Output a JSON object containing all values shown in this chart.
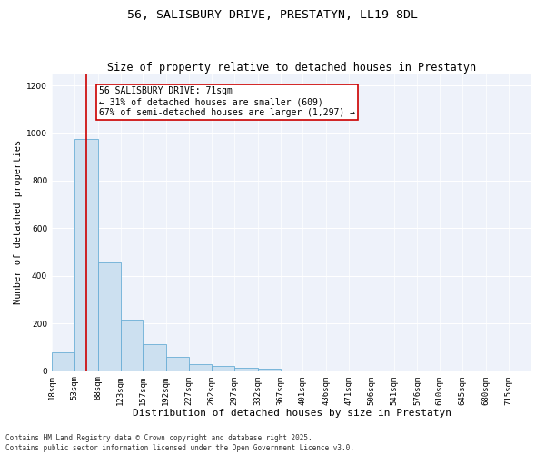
{
  "title": "56, SALISBURY DRIVE, PRESTATYN, LL19 8DL",
  "subtitle": "Size of property relative to detached houses in Prestatyn",
  "xlabel": "Distribution of detached houses by size in Prestatyn",
  "ylabel": "Number of detached properties",
  "bar_color": "#cce0f0",
  "bar_edge_color": "#6aaed6",
  "background_color": "#eef2fa",
  "vline_x": 71,
  "vline_color": "#cc0000",
  "annotation_text": "56 SALISBURY DRIVE: 71sqm\n← 31% of detached houses are smaller (609)\n67% of semi-detached houses are larger (1,297) →",
  "annotation_box_color": "#cc0000",
  "footnote": "Contains HM Land Registry data © Crown copyright and database right 2025.\nContains public sector information licensed under the Open Government Licence v3.0.",
  "categories": [
    "18sqm",
    "53sqm",
    "88sqm",
    "123sqm",
    "157sqm",
    "192sqm",
    "227sqm",
    "262sqm",
    "297sqm",
    "332sqm",
    "367sqm",
    "401sqm",
    "436sqm",
    "471sqm",
    "506sqm",
    "541sqm",
    "576sqm",
    "610sqm",
    "645sqm",
    "680sqm",
    "715sqm"
  ],
  "bin_edges": [
    18,
    53,
    88,
    123,
    157,
    192,
    227,
    262,
    297,
    332,
    367,
    401,
    436,
    471,
    506,
    541,
    576,
    610,
    645,
    680,
    715,
    750
  ],
  "values": [
    80,
    975,
    455,
    215,
    115,
    60,
    28,
    20,
    15,
    10,
    0,
    0,
    0,
    0,
    0,
    0,
    0,
    0,
    0,
    0,
    0
  ],
  "ylim": [
    0,
    1250
  ],
  "yticks": [
    0,
    200,
    400,
    600,
    800,
    1000,
    1200
  ],
  "title_fontsize": 9.5,
  "subtitle_fontsize": 8.5,
  "xlabel_fontsize": 8,
  "ylabel_fontsize": 7.5,
  "tick_fontsize": 6.5,
  "annot_fontsize": 7,
  "footnote_fontsize": 5.5
}
